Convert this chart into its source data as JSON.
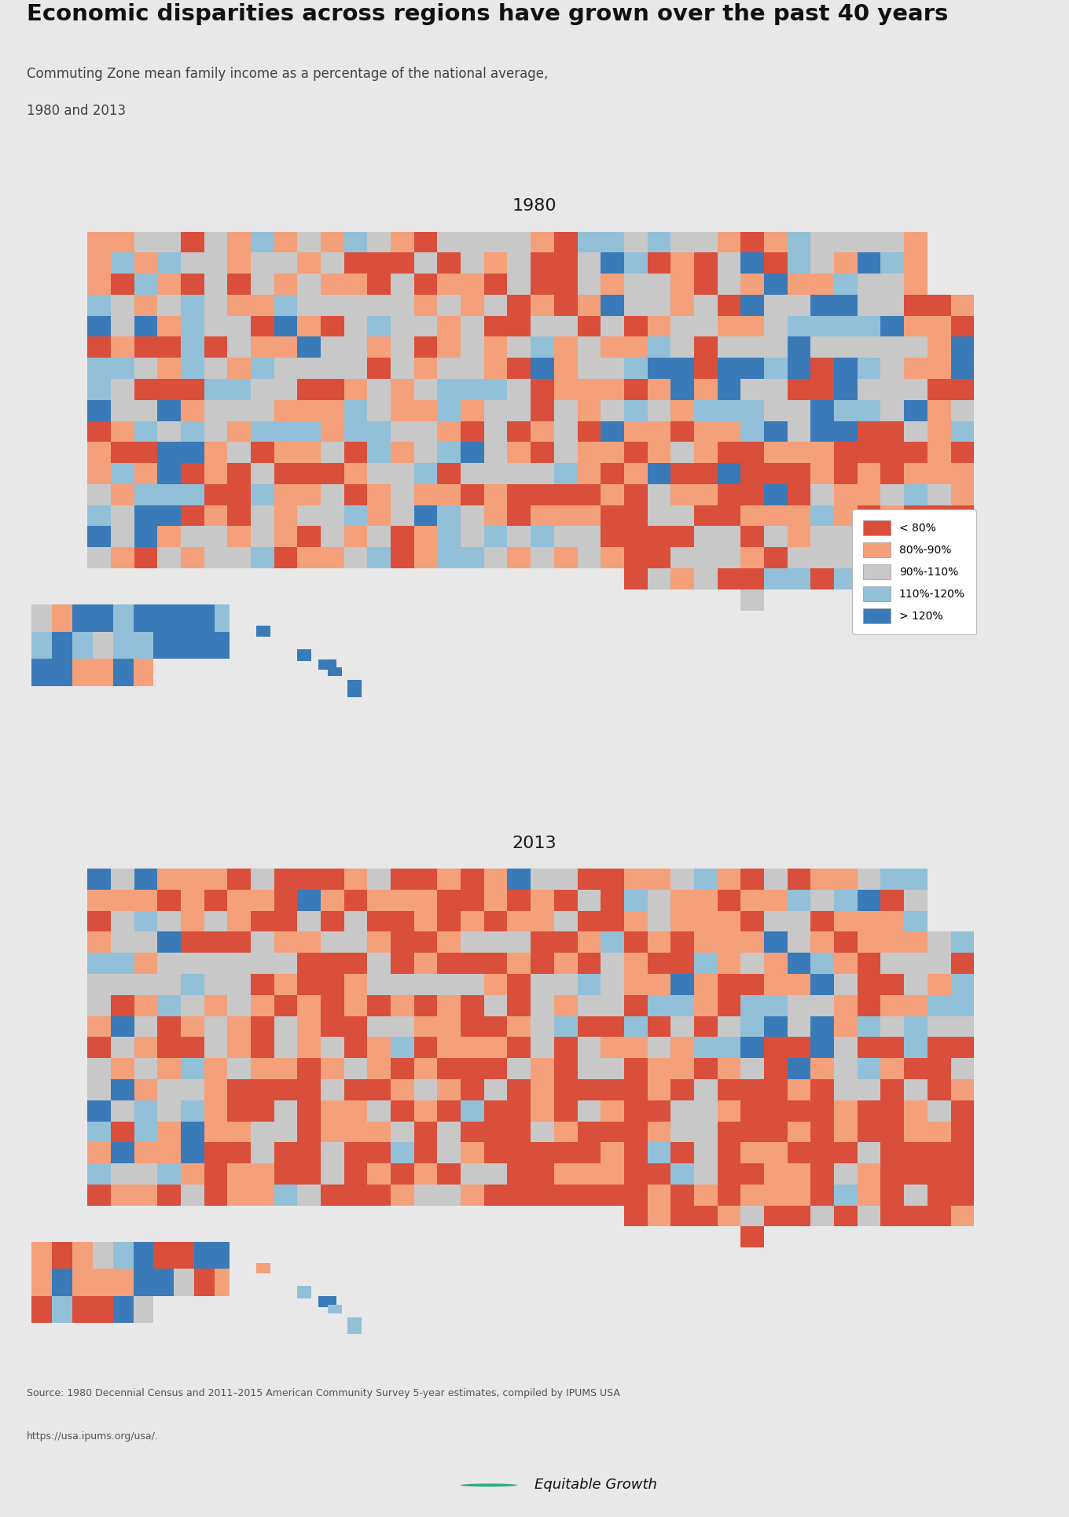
{
  "title": "Economic disparities across regions have grown over the past 40 years",
  "subtitle_line1": "Commuting Zone mean family income as a percentage of the national average,",
  "subtitle_line2": "1980 and 2013",
  "map_title_1980": "1980",
  "map_title_2013": "2013",
  "source_line1": "Source: 1980 Decennial Census and 2011–2015 American Community Survey 5-year estimates, compiled by IPUMS USA",
  "source_line2": "https://usa.ipums.org/usa/.",
  "background_color": "#e8e8e8",
  "legend_labels": [
    "< 80%",
    "80%-90%",
    "90%-110%",
    "110%-120%",
    "> 120%"
  ],
  "legend_hex": [
    "#d94f3b",
    "#f4a07a",
    "#c8c8c8",
    "#92c0d8",
    "#3a7ab8"
  ],
  "title_fontsize": 21,
  "subtitle_fontsize": 12,
  "map_title_fontsize": 16,
  "source_fontsize": 9,
  "legend_fontsize": 10,
  "brand_color": "#3aaa8a",
  "brand_text": "Equitable Growth",
  "brand_fontsize": 13,
  "map_bg": "#e8e8e8"
}
